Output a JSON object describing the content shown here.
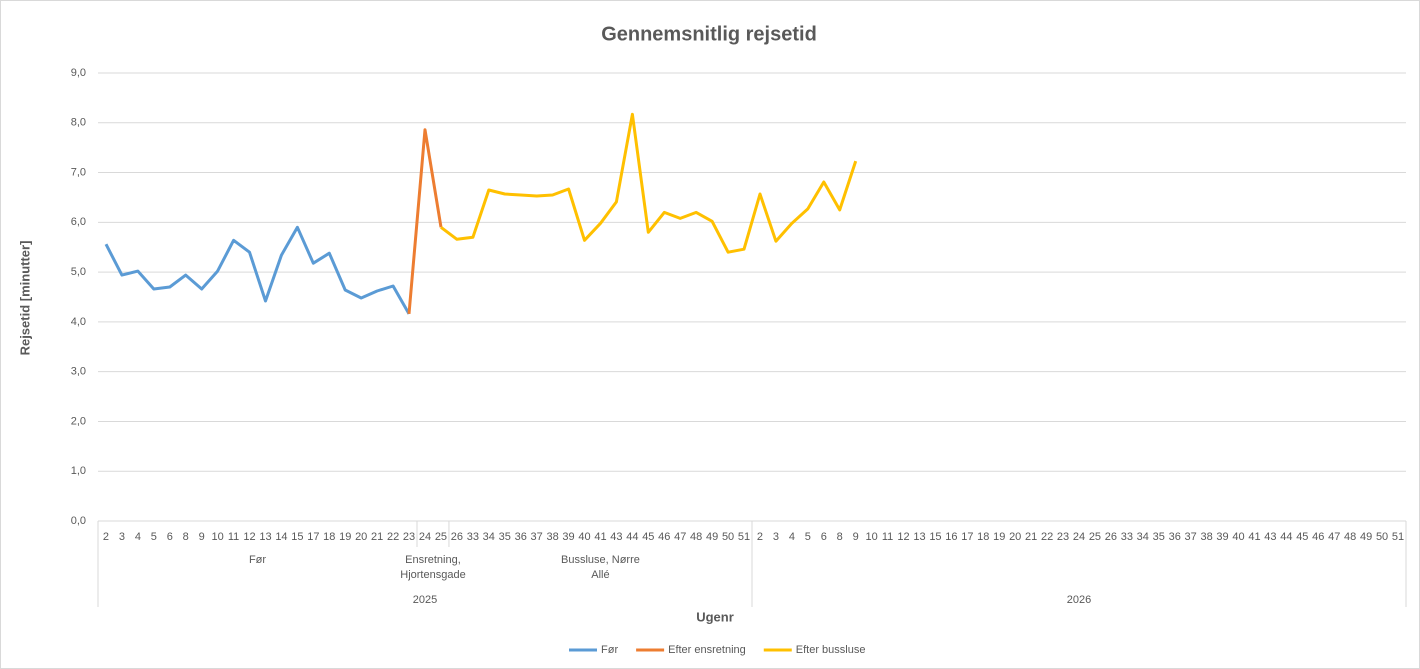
{
  "chart_data": {
    "type": "line",
    "title": "Gennemsnitlig rejsetid",
    "y_label": "Rejsetid [minutter]",
    "x_label": "Ugenr",
    "years": [
      {
        "year": "2025",
        "periods": [
          {
            "name": "Før",
            "weeks": [
              "2",
              "3",
              "4",
              "5",
              "6",
              "8",
              "9",
              "10",
              "11",
              "12",
              "13",
              "14",
              "15",
              "17",
              "18",
              "19",
              "20",
              "21",
              "22",
              "23"
            ]
          },
          {
            "name": "Ensretning, Hjortensgade",
            "weeks": [
              "24",
              "25"
            ]
          },
          {
            "name": "Bussluse, Nørre Allé",
            "weeks": [
              "26",
              "33",
              "34",
              "35",
              "36",
              "37",
              "38",
              "39",
              "40",
              "41",
              "43",
              "44",
              "45",
              "46",
              "47",
              "48",
              "49",
              "50",
              "51"
            ]
          }
        ]
      },
      {
        "year": "2026",
        "periods": [
          {
            "name": null,
            "weeks": [
              "2",
              "3",
              "4",
              "5",
              "6",
              "8",
              "9",
              "10",
              "11",
              "12",
              "13",
              "15",
              "16",
              "17",
              "18",
              "19",
              "20",
              "21",
              "22",
              "23",
              "24",
              "25",
              "26",
              "33",
              "34",
              "35",
              "36",
              "37",
              "38",
              "39",
              "40",
              "41",
              "43",
              "44",
              "45",
              "46",
              "47",
              "48",
              "49",
              "50",
              "51"
            ]
          }
        ]
      }
    ],
    "series": [
      {
        "name": "Før",
        "color": "#5b9bd5",
        "values": [
          5.56,
          4.94,
          5.02,
          4.66,
          4.7,
          4.94,
          4.66,
          5.02,
          5.64,
          5.4,
          4.42,
          5.34,
          5.9,
          5.18,
          5.38,
          4.64,
          4.48,
          4.62,
          4.72,
          4.16,
          null,
          null,
          null,
          null,
          null,
          null,
          null,
          null,
          null,
          null,
          null,
          null,
          null,
          null,
          null,
          null,
          null,
          null,
          null,
          null,
          null,
          null,
          null,
          null,
          null,
          null,
          null,
          null,
          null,
          null,
          null,
          null,
          null,
          null,
          null,
          null,
          null,
          null,
          null,
          null,
          null,
          null,
          null,
          null,
          null,
          null,
          null,
          null,
          null,
          null,
          null,
          null,
          null,
          null,
          null,
          null,
          null,
          null,
          null,
          null,
          null,
          null
        ]
      },
      {
        "name": "Efter ensretning",
        "color": "#ed7d31",
        "values": [
          null,
          null,
          null,
          null,
          null,
          null,
          null,
          null,
          null,
          null,
          null,
          null,
          null,
          null,
          null,
          null,
          null,
          null,
          null,
          4.16,
          7.86,
          5.9,
          null,
          null,
          null,
          null,
          null,
          null,
          null,
          null,
          null,
          null,
          null,
          null,
          null,
          null,
          null,
          null,
          null,
          null,
          null,
          null,
          null,
          null,
          null,
          null,
          null,
          null,
          null,
          null,
          null,
          null,
          null,
          null,
          null,
          null,
          null,
          null,
          null,
          null,
          null,
          null,
          null,
          null,
          null,
          null,
          null,
          null,
          null,
          null,
          null,
          null,
          null,
          null,
          null,
          null,
          null,
          null,
          null,
          null,
          null,
          null
        ]
      },
      {
        "name": "Efter bussluse",
        "color": "#ffc000",
        "values": [
          null,
          null,
          null,
          null,
          null,
          null,
          null,
          null,
          null,
          null,
          null,
          null,
          null,
          null,
          null,
          null,
          null,
          null,
          null,
          null,
          null,
          5.9,
          5.66,
          5.7,
          6.65,
          6.57,
          6.55,
          6.53,
          6.55,
          6.67,
          5.64,
          5.98,
          6.41,
          8.17,
          5.8,
          6.2,
          6.08,
          6.2,
          6.02,
          5.4,
          5.46,
          6.57,
          5.62,
          5.98,
          6.27,
          6.81,
          6.25,
          7.23,
          null,
          null,
          null,
          null,
          null,
          null,
          null,
          null,
          null,
          null,
          null,
          null,
          null,
          null,
          null,
          null,
          null,
          null,
          null,
          null,
          null,
          null,
          null,
          null,
          null,
          null,
          null,
          null,
          null,
          null,
          null,
          null,
          null,
          null
        ]
      }
    ],
    "ylim": [
      0,
      9
    ],
    "yticks": [
      {
        "value": 0,
        "label": "0,0"
      },
      {
        "value": 1,
        "label": "1,0"
      },
      {
        "value": 2,
        "label": "2,0"
      },
      {
        "value": 3,
        "label": "3,0"
      },
      {
        "value": 4,
        "label": "4,0"
      },
      {
        "value": 5,
        "label": "5,0"
      },
      {
        "value": 6,
        "label": "6,0"
      },
      {
        "value": 7,
        "label": "7,0"
      },
      {
        "value": 8,
        "label": "8,0"
      },
      {
        "value": 9,
        "label": "9,0"
      }
    ],
    "grid": true,
    "legend": "bottom"
  }
}
